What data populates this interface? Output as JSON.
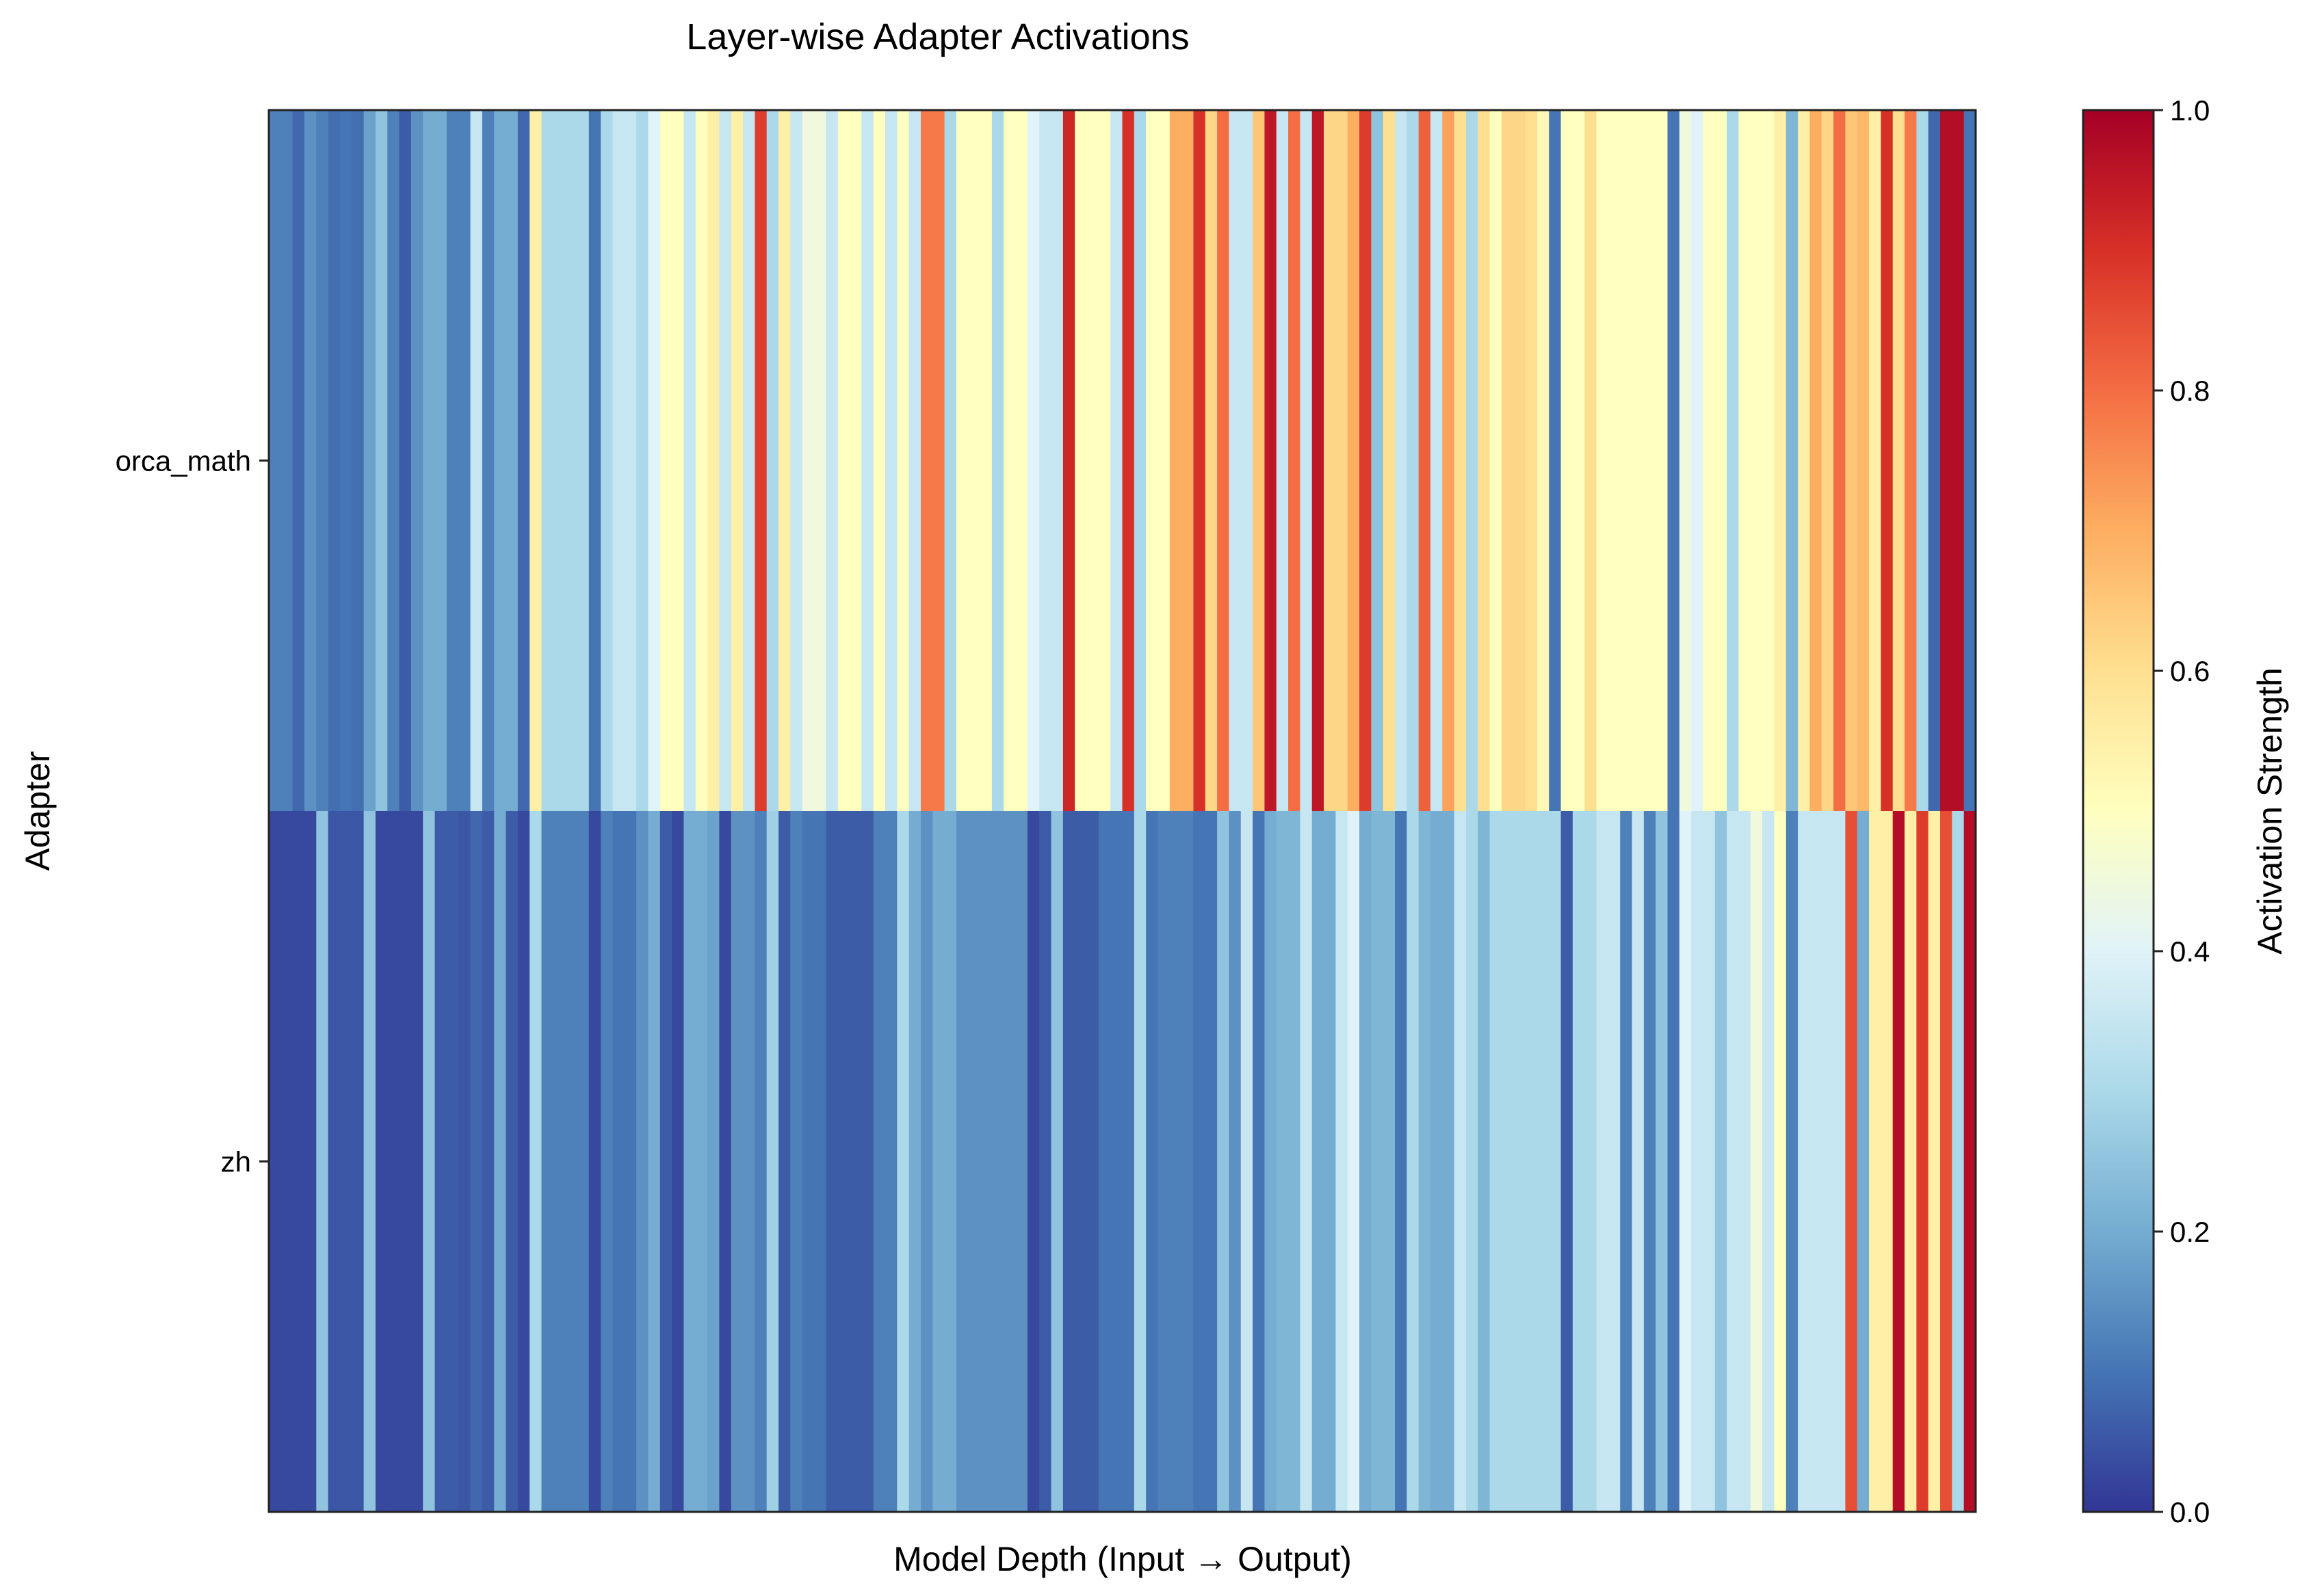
{
  "chart_data": {
    "type": "heatmap",
    "title": "Layer-wise Adapter Activations",
    "xlabel": "Model Depth (Input → Output)",
    "ylabel": "Adapter",
    "rows": [
      "orca_math",
      "zh"
    ],
    "x_ticks_shown": false,
    "value_range": [
      0.0,
      1.0
    ],
    "colormap": "RdYlBu_r",
    "colorbar": {
      "label": "Activation Strength",
      "ticks": [
        "0.0",
        "0.2",
        "0.4",
        "0.6",
        "0.8",
        "1.0"
      ],
      "tick_values": [
        0.0,
        0.2,
        0.4,
        0.6,
        0.8,
        1.0
      ]
    },
    "values": [
      [
        0.12,
        0.12,
        0.08,
        0.15,
        0.12,
        0.09,
        0.1,
        0.09,
        0.18,
        0.25,
        0.12,
        0.06,
        0.15,
        0.2,
        0.2,
        0.12,
        0.12,
        0.35,
        0.12,
        0.2,
        0.2,
        0.08,
        0.55,
        0.3,
        0.3,
        0.3,
        0.3,
        0.1,
        0.3,
        0.35,
        0.35,
        0.3,
        0.4,
        0.5,
        0.5,
        0.35,
        0.5,
        0.55,
        0.35,
        0.55,
        0.35,
        0.88,
        0.3,
        0.55,
        0.35,
        0.45,
        0.45,
        0.35,
        0.5,
        0.5,
        0.35,
        0.5,
        0.35,
        0.5,
        0.35,
        0.78,
        0.78,
        0.3,
        0.5,
        0.5,
        0.5,
        0.3,
        0.5,
        0.5,
        0.4,
        0.35,
        0.35,
        0.92,
        0.5,
        0.5,
        0.5,
        0.35,
        0.9,
        0.3,
        0.5,
        0.5,
        0.7,
        0.7,
        0.9,
        0.62,
        0.8,
        0.35,
        0.35,
        0.65,
        0.95,
        0.35,
        0.8,
        0.35,
        0.95,
        0.62,
        0.62,
        0.7,
        0.88,
        0.25,
        0.6,
        0.35,
        0.3,
        0.82,
        0.35,
        0.72,
        0.6,
        0.3,
        0.6,
        0.5,
        0.62,
        0.62,
        0.6,
        0.52,
        0.1,
        0.5,
        0.5,
        0.6,
        0.5,
        0.5,
        0.5,
        0.5,
        0.5,
        0.5,
        0.1,
        0.45,
        0.4,
        0.5,
        0.5,
        0.3,
        0.5,
        0.5,
        0.5,
        0.55,
        0.22,
        0.55,
        0.7,
        0.62,
        0.8,
        0.65,
        0.68,
        0.55,
        0.9,
        0.6,
        0.78,
        0.3,
        0.08,
        0.97,
        0.97,
        0.1
      ],
      [
        0.03,
        0.03,
        0.03,
        0.03,
        0.25,
        0.05,
        0.05,
        0.05,
        0.25,
        0.03,
        0.03,
        0.03,
        0.03,
        0.25,
        0.06,
        0.06,
        0.05,
        0.08,
        0.06,
        0.2,
        0.06,
        0.03,
        0.3,
        0.12,
        0.12,
        0.12,
        0.12,
        0.03,
        0.12,
        0.1,
        0.1,
        0.15,
        0.2,
        0.06,
        0.03,
        0.2,
        0.2,
        0.18,
        0.03,
        0.15,
        0.15,
        0.12,
        0.28,
        0.06,
        0.12,
        0.1,
        0.1,
        0.06,
        0.06,
        0.06,
        0.06,
        0.12,
        0.12,
        0.3,
        0.2,
        0.15,
        0.2,
        0.2,
        0.15,
        0.15,
        0.15,
        0.15,
        0.15,
        0.15,
        0.03,
        0.06,
        0.25,
        0.06,
        0.06,
        0.06,
        0.1,
        0.1,
        0.1,
        0.3,
        0.1,
        0.12,
        0.12,
        0.12,
        0.1,
        0.1,
        0.25,
        0.15,
        0.35,
        0.1,
        0.2,
        0.22,
        0.22,
        0.35,
        0.2,
        0.2,
        0.35,
        0.4,
        0.2,
        0.22,
        0.22,
        0.1,
        0.3,
        0.22,
        0.2,
        0.2,
        0.35,
        0.3,
        0.22,
        0.3,
        0.3,
        0.3,
        0.3,
        0.3,
        0.3,
        0.06,
        0.3,
        0.3,
        0.35,
        0.35,
        0.12,
        0.35,
        0.12,
        0.25,
        0.1,
        0.4,
        0.35,
        0.35,
        0.25,
        0.35,
        0.35,
        0.45,
        0.35,
        0.5,
        0.12,
        0.35,
        0.35,
        0.35,
        0.35,
        0.85,
        0.2,
        0.55,
        0.55,
        0.97,
        0.55,
        0.88,
        0.55,
        0.85,
        0.3,
        0.97
      ]
    ]
  }
}
